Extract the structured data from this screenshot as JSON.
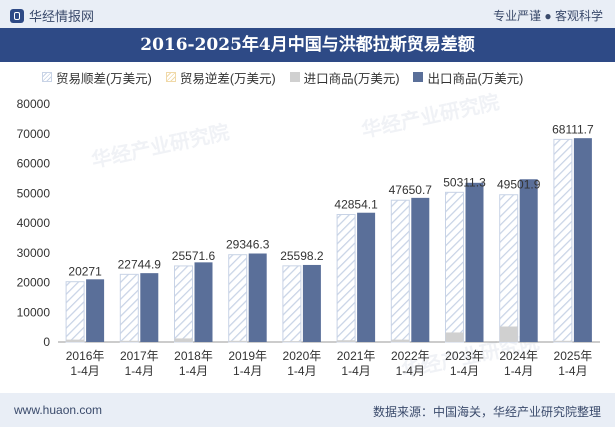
{
  "header": {
    "brand": "华经情报网",
    "tagline": "专业严谨 ● 客观科学"
  },
  "footer": {
    "site": "www.huaon.com",
    "source": "数据来源：中国海关，华经产业研究院整理"
  },
  "watermark": "华经产业研究院",
  "colors": {
    "surplus_hatch": "#c8d3e6",
    "deficit_hatch": "#f0d9a8",
    "import": "#d0d0d0",
    "export": "#5a6f99",
    "title_bg": "#2e4a86"
  },
  "chart_data": {
    "type": "bar",
    "title": "2016-2025年4月中国与洪都拉斯贸易差额",
    "categories": [
      "2016年\n1-4月",
      "2017年\n1-4月",
      "2018年\n1-4月",
      "2019年\n1-4月",
      "2020年\n1-4月",
      "2021年\n1-4月",
      "2022年\n1-4月",
      "2023年\n1-4月",
      "2024年\n1-4月",
      "2025年\n1-4月"
    ],
    "series": [
      {
        "name": "贸易顺差(万美元)",
        "values": [
          20271,
          22744.9,
          25571.6,
          29346.3,
          25598.2,
          42854.1,
          47650.7,
          50311.3,
          49501.9,
          68111.7
        ]
      },
      {
        "name": "贸易逆差(万美元)",
        "values": [
          0,
          0,
          0,
          0,
          0,
          0,
          0,
          0,
          0,
          0
        ]
      },
      {
        "name": "进口商品(万美元)",
        "values": [
          800,
          400,
          1200,
          400,
          300,
          600,
          800,
          3200,
          5200,
          400
        ]
      },
      {
        "name": "出口商品(万美元)",
        "values": [
          21071,
          23144.9,
          26771.6,
          29746.3,
          25898.2,
          43454.1,
          48450.7,
          53511.3,
          54701.9,
          68511.7
        ]
      }
    ],
    "data_labels": [
      "20271",
      "22744.9",
      "25571.6",
      "29346.3",
      "25598.2",
      "42854.1",
      "47650.7",
      "50311.3",
      "49501.9",
      "68111.7"
    ],
    "yticks": [
      "0",
      "10000",
      "20000",
      "30000",
      "40000",
      "50000",
      "60000",
      "70000",
      "80000"
    ],
    "ylim": [
      0,
      80000
    ],
    "legend_position": "top-left",
    "grid": false
  }
}
